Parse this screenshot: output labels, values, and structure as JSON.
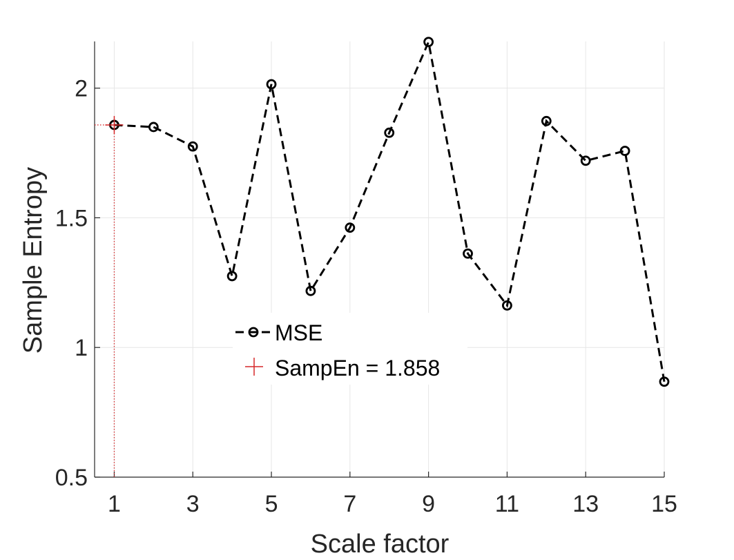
{
  "chart_data": {
    "type": "line",
    "title": "",
    "xlabel": "Scale factor",
    "ylabel": "Sample Entropy",
    "xlim": [
      0.5,
      15
    ],
    "ylim": [
      0.5,
      2.18
    ],
    "xticks": [
      1,
      3,
      5,
      7,
      9,
      11,
      13,
      15
    ],
    "yticks": [
      0.5,
      1,
      1.5,
      2
    ],
    "ytick_labels": [
      "0.5",
      "1",
      "1.5",
      "2"
    ],
    "grid": true,
    "legend_position": "center-left",
    "x": [
      1,
      2,
      3,
      4,
      5,
      6,
      7,
      8,
      9,
      10,
      11,
      12,
      13,
      14,
      15
    ],
    "series": [
      {
        "name": "MSE",
        "style": "dashed line with circle markers",
        "color": "#000000",
        "values": [
          1.858,
          1.85,
          1.775,
          1.275,
          2.015,
          1.218,
          1.462,
          1.828,
          2.178,
          1.362,
          1.162,
          1.873,
          1.72,
          1.758,
          0.868
        ]
      },
      {
        "name": "SampEn = 1.858",
        "style": "plus marker",
        "color": "#d62728",
        "x": [
          1
        ],
        "values": [
          1.858
        ]
      }
    ]
  }
}
